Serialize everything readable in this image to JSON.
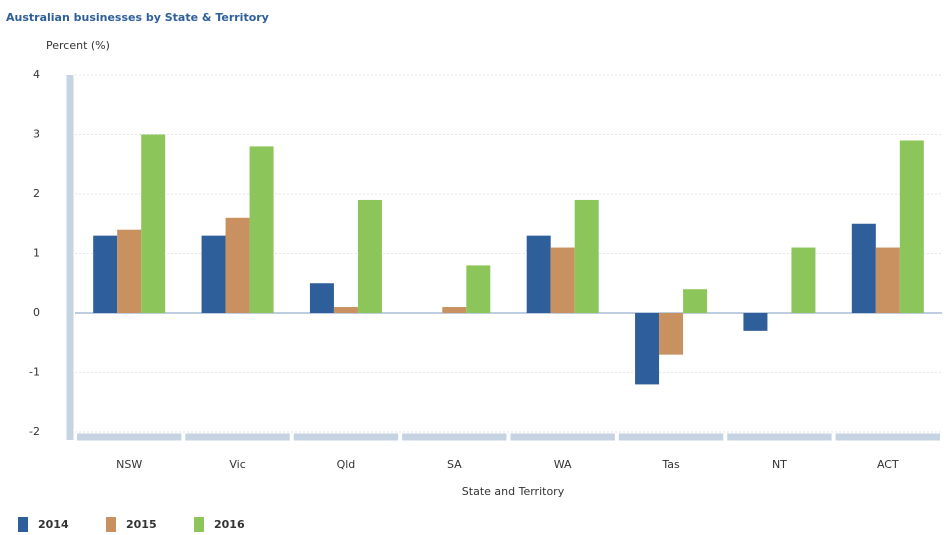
{
  "chart_data": {
    "type": "bar",
    "title": "Australian businesses by State & Territory",
    "y_label": "Percent (%)",
    "x_label": "State and Territory",
    "categories": [
      "NSW",
      "Vic",
      "Qld",
      "SA",
      "WA",
      "Tas",
      "NT",
      "ACT"
    ],
    "series": [
      {
        "name": "2014",
        "color": "#2e5f9a",
        "values": [
          1.3,
          1.3,
          0.5,
          0,
          1.3,
          -1.2,
          -0.3,
          1.5
        ]
      },
      {
        "name": "2015",
        "color": "#c8915f",
        "values": [
          1.4,
          1.6,
          0.1,
          0.1,
          1.1,
          -0.7,
          0,
          1.1
        ]
      },
      {
        "name": "2016",
        "color": "#8cc65a",
        "values": [
          3.0,
          2.8,
          1.9,
          0.8,
          1.9,
          0.4,
          1.1,
          2.9
        ]
      }
    ],
    "ylim": [
      -2,
      4
    ],
    "yticks": [
      -2,
      -1,
      0,
      1,
      2,
      3,
      4
    ],
    "grid": true
  }
}
